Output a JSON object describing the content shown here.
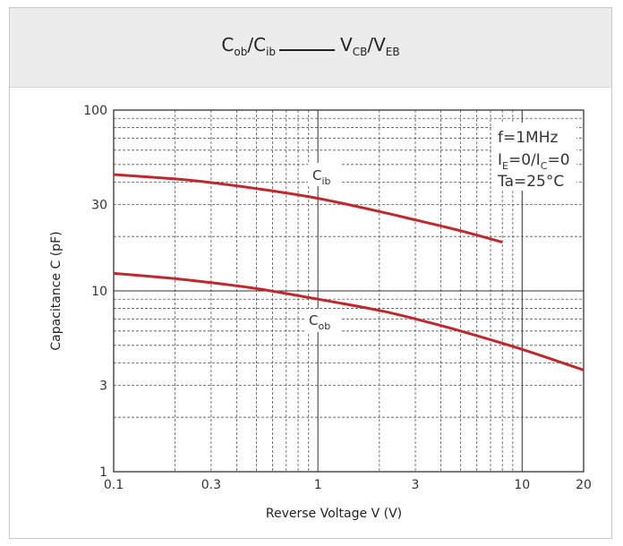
{
  "chart_data": {
    "type": "line",
    "title": "Cob/Cib ——— VCB/VEB",
    "title_parts": {
      "y_main_1": "C",
      "y_sub_1": "ob",
      "sep_1": "/",
      "y_main_2": "C",
      "y_sub_2": "ib",
      "x_main_1": "V",
      "x_sub_1": "CB",
      "sep_2": "/",
      "x_main_2": "V",
      "x_sub_2": "EB"
    },
    "xlabel": "Reverse Voltage  V (V)",
    "ylabel": "Capacitance C (pF)",
    "xscale": "log",
    "yscale": "log",
    "xlim": [
      0.1,
      20
    ],
    "ylim": [
      1,
      100
    ],
    "xticks": [
      {
        "v": 0.1,
        "label": "0.1"
      },
      {
        "v": 0.3,
        "label": "0.3"
      },
      {
        "v": 1,
        "label": "1"
      },
      {
        "v": 3,
        "label": "3"
      },
      {
        "v": 10,
        "label": "10"
      },
      {
        "v": 20,
        "label": "20"
      }
    ],
    "yticks": [
      {
        "v": 1,
        "label": "1"
      },
      {
        "v": 3,
        "label": "3"
      },
      {
        "v": 10,
        "label": "10"
      },
      {
        "v": 30,
        "label": "30"
      },
      {
        "v": 100,
        "label": "100"
      }
    ],
    "grid": true,
    "conditions": {
      "freq": "f=1MHz",
      "bias_parts": {
        "a": "I",
        "a_sub": "E",
        "b": "=0/I",
        "b_sub": "C",
        "c": "=0"
      },
      "temp": "Ta=25°C"
    },
    "series": [
      {
        "name": "Cib",
        "label_main": "C",
        "label_sub": "ib",
        "color": "#c0282d",
        "x": [
          0.1,
          0.2,
          0.3,
          0.5,
          1,
          2,
          3,
          5,
          8
        ],
        "y": [
          44,
          41.6,
          39.7,
          36.8,
          32.5,
          27.5,
          24.7,
          21.5,
          18.6
        ]
      },
      {
        "name": "Cob",
        "label_main": "C",
        "label_sub": "ob",
        "color": "#c0282d",
        "x": [
          0.1,
          0.2,
          0.3,
          0.5,
          1,
          2,
          3,
          5,
          10,
          20
        ],
        "y": [
          12.5,
          11.7,
          11.1,
          10.3,
          9.0,
          7.8,
          7.0,
          6.0,
          4.75,
          3.65
        ]
      }
    ]
  }
}
